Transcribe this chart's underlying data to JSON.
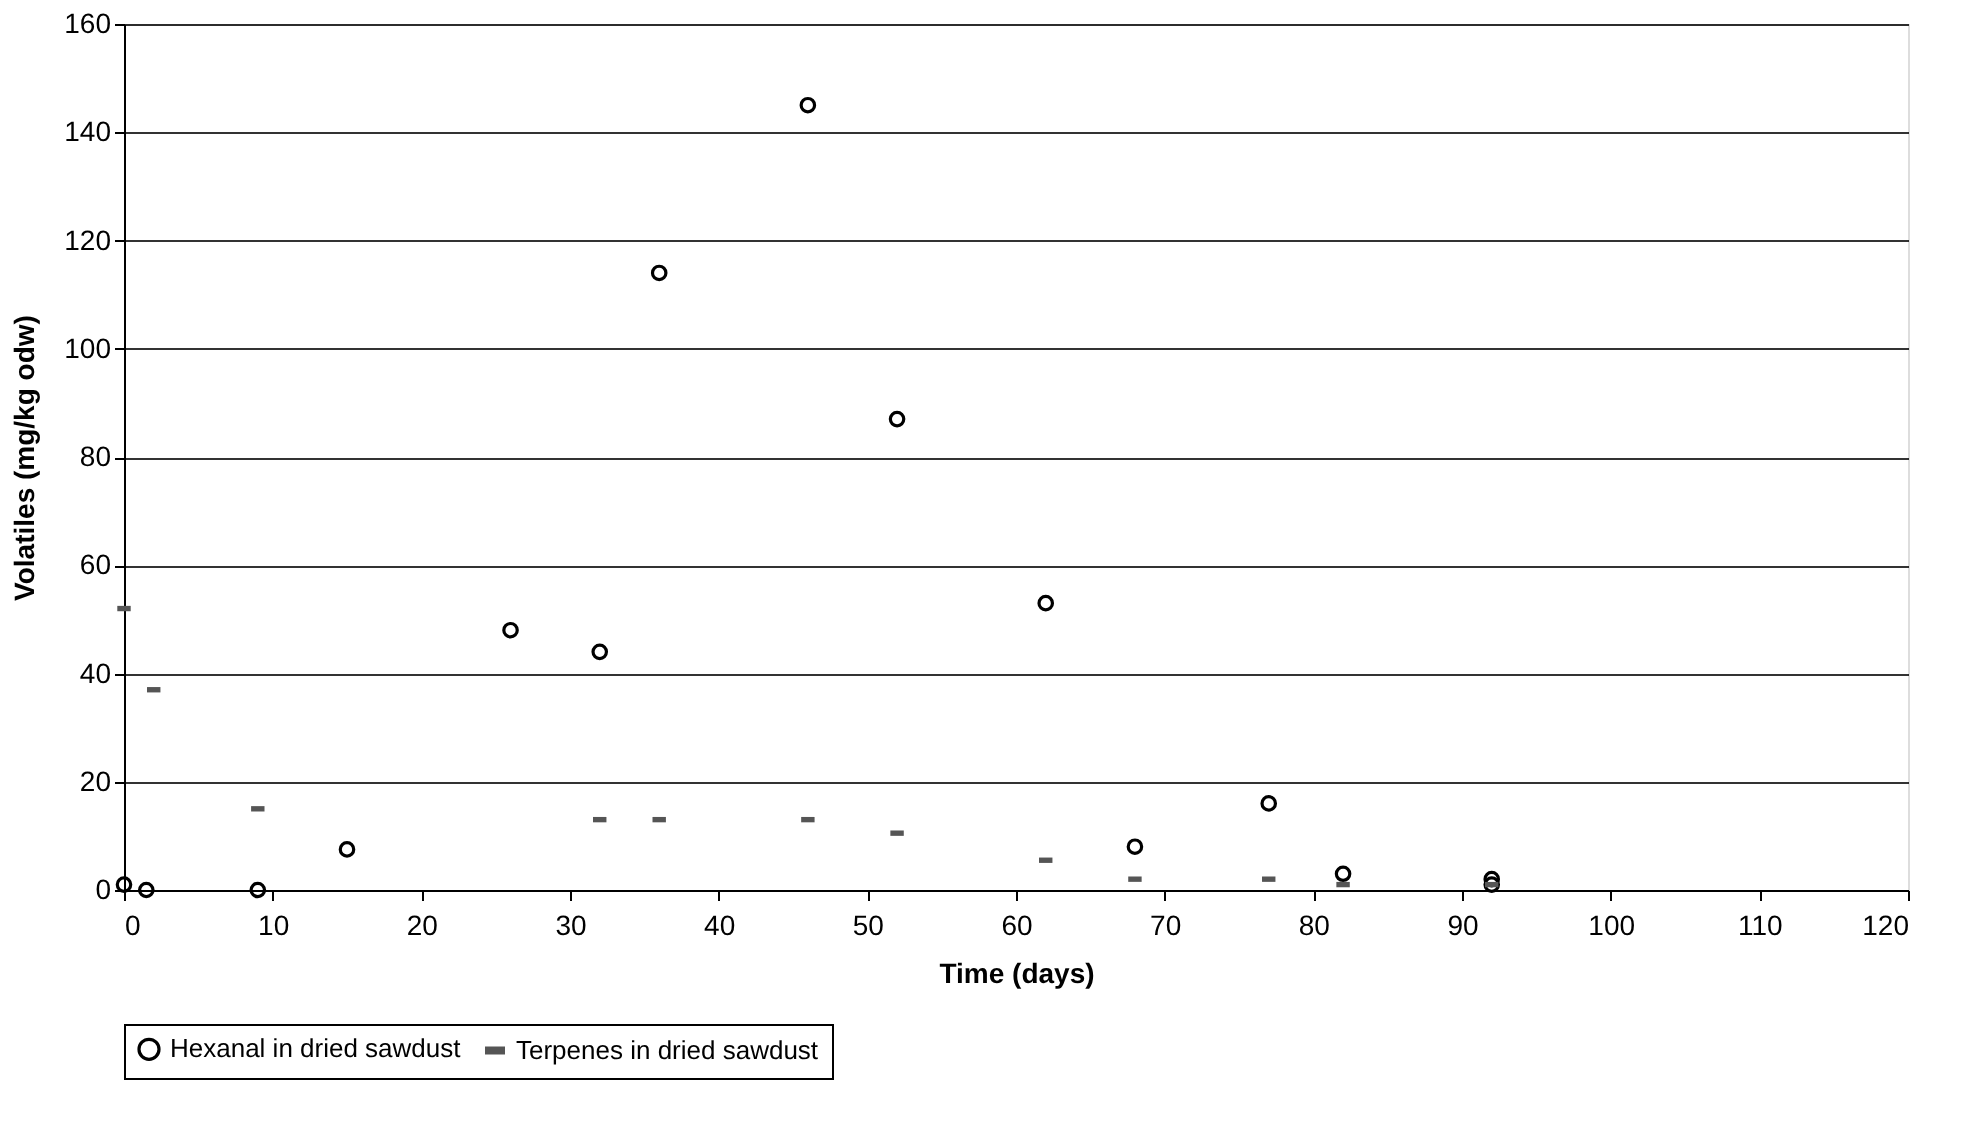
{
  "chart_data": {
    "type": "scatter",
    "xlabel": "Time (days)",
    "ylabel": "Volatiles (mg/kg odw)",
    "xlim": [
      0,
      120
    ],
    "xticks": [
      0,
      10,
      20,
      30,
      40,
      50,
      60,
      70,
      80,
      90,
      100,
      110,
      120
    ],
    "ylim": [
      0,
      160
    ],
    "yticks": [
      0,
      20,
      40,
      60,
      80,
      100,
      120,
      140,
      160
    ],
    "grid": "y",
    "legend": "bottom",
    "series": [
      {
        "name": "Hexanal in dried sawdust",
        "color": "#000000",
        "marker": "circle",
        "x": [
          0,
          1.5,
          9,
          15,
          26,
          32,
          36,
          46,
          52,
          62,
          68,
          77,
          82,
          92,
          92
        ],
        "values": [
          1,
          0,
          0,
          7.5,
          48,
          44,
          114,
          145,
          87,
          53,
          8,
          16,
          3,
          2,
          1
        ]
      },
      {
        "name": "Terpenes in dried sawdust",
        "color": "#555555",
        "x": [
          0,
          2,
          9,
          32,
          36,
          46,
          52,
          62,
          68,
          77,
          82,
          92
        ],
        "values": [
          52,
          37,
          15,
          13,
          13,
          13,
          10.5,
          5.5,
          2,
          2,
          1,
          1
        ]
      }
    ]
  }
}
